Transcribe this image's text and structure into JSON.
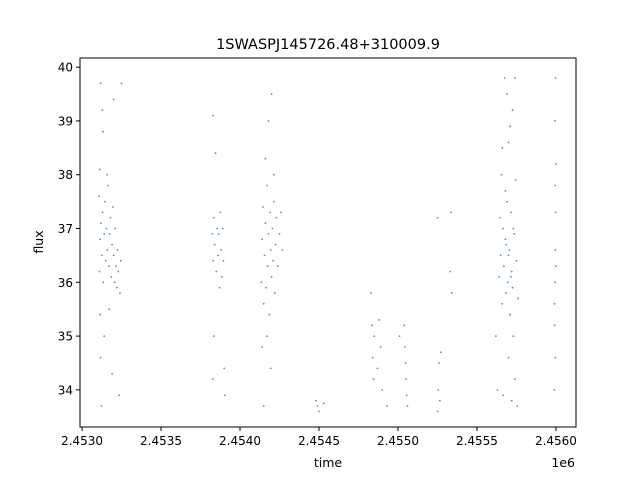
{
  "chart_data": {
    "type": "scatter",
    "title": "1SWASPJ145726.48+310009.9",
    "xlabel": "time",
    "ylabel": "flux",
    "x_offset_label": "1e6",
    "xlim": [
      2452987,
      2456127
    ],
    "ylim": [
      33.31,
      40.17
    ],
    "xticks": [
      2453000,
      2453500,
      2454000,
      2454500,
      2455000,
      2455500,
      2456000
    ],
    "xtick_labels": [
      "2.4530",
      "2.4535",
      "2.4540",
      "2.4545",
      "2.4550",
      "2.4555",
      "2.4560"
    ],
    "yticks": [
      34,
      35,
      36,
      37,
      38,
      39,
      40
    ],
    "ytick_labels": [
      "34",
      "35",
      "36",
      "37",
      "38",
      "39",
      "40"
    ],
    "grid": false,
    "color": "#1f77b4",
    "points": [
      [
        2453110,
        36.2
      ],
      [
        2453115,
        36.8
      ],
      [
        2453120,
        37.1
      ],
      [
        2453125,
        36.5
      ],
      [
        2453130,
        37.3
      ],
      [
        2453135,
        36.0
      ],
      [
        2453140,
        36.9
      ],
      [
        2453145,
        37.5
      ],
      [
        2453150,
        36.4
      ],
      [
        2453155,
        37.0
      ],
      [
        2453160,
        36.6
      ],
      [
        2453165,
        37.8
      ],
      [
        2453170,
        36.3
      ],
      [
        2453175,
        36.9
      ],
      [
        2453180,
        37.2
      ],
      [
        2453185,
        36.1
      ],
      [
        2453190,
        36.7
      ],
      [
        2453195,
        37.4
      ],
      [
        2453200,
        36.5
      ],
      [
        2453205,
        36.0
      ],
      [
        2453210,
        37.0
      ],
      [
        2453215,
        36.3
      ],
      [
        2453220,
        35.9
      ],
      [
        2453225,
        36.6
      ],
      [
        2453230,
        36.2
      ],
      [
        2453240,
        35.8
      ],
      [
        2453245,
        36.4
      ],
      [
        2453112,
        38.1
      ],
      [
        2453118,
        39.7
      ],
      [
        2453128,
        39.2
      ],
      [
        2453133,
        38.8
      ],
      [
        2453158,
        38.0
      ],
      [
        2453200,
        39.4
      ],
      [
        2453250,
        39.7
      ],
      [
        2453115,
        35.4
      ],
      [
        2453140,
        35.0
      ],
      [
        2453117,
        34.6
      ],
      [
        2453123,
        33.7
      ],
      [
        2453190,
        34.3
      ],
      [
        2453235,
        33.9
      ],
      [
        2453108,
        37.6
      ],
      [
        2453172,
        35.5
      ],
      [
        2453825,
        36.9
      ],
      [
        2453830,
        36.4
      ],
      [
        2453835,
        37.2
      ],
      [
        2453840,
        36.7
      ],
      [
        2453845,
        38.4
      ],
      [
        2453850,
        36.2
      ],
      [
        2453855,
        37.0
      ],
      [
        2453860,
        36.5
      ],
      [
        2453865,
        36.9
      ],
      [
        2453870,
        35.9
      ],
      [
        2453875,
        37.3
      ],
      [
        2453880,
        36.6
      ],
      [
        2453885,
        36.1
      ],
      [
        2453890,
        37.0
      ],
      [
        2453895,
        36.4
      ],
      [
        2453828,
        34.2
      ],
      [
        2453834,
        35.0
      ],
      [
        2453900,
        34.4
      ],
      [
        2453905,
        33.9
      ],
      [
        2453830,
        39.1
      ],
      [
        2454135,
        36.0
      ],
      [
        2454140,
        36.8
      ],
      [
        2454145,
        37.4
      ],
      [
        2454150,
        35.6
      ],
      [
        2454155,
        36.5
      ],
      [
        2454160,
        37.1
      ],
      [
        2454165,
        35.9
      ],
      [
        2454170,
        37.8
      ],
      [
        2454175,
        36.3
      ],
      [
        2454180,
        36.9
      ],
      [
        2454185,
        35.4
      ],
      [
        2454190,
        37.3
      ],
      [
        2454195,
        36.6
      ],
      [
        2454200,
        36.1
      ],
      [
        2454205,
        37.0
      ],
      [
        2454210,
        36.4
      ],
      [
        2454215,
        37.5
      ],
      [
        2454220,
        35.8
      ],
      [
        2454225,
        36.7
      ],
      [
        2454230,
        37.2
      ],
      [
        2454240,
        36.3
      ],
      [
        2454250,
        36.9
      ],
      [
        2454260,
        37.3
      ],
      [
        2454268,
        36.6
      ],
      [
        2454160,
        38.3
      ],
      [
        2454180,
        39.0
      ],
      [
        2454200,
        39.5
      ],
      [
        2454140,
        34.8
      ],
      [
        2454150,
        33.7
      ],
      [
        2454195,
        34.4
      ],
      [
        2454170,
        35.0
      ],
      [
        2454215,
        38.0
      ],
      [
        2454480,
        33.8
      ],
      [
        2454490,
        33.7
      ],
      [
        2454500,
        33.6
      ],
      [
        2454530,
        33.75
      ],
      [
        2454830,
        35.8
      ],
      [
        2454835,
        35.2
      ],
      [
        2454840,
        34.6
      ],
      [
        2454845,
        34.2
      ],
      [
        2454850,
        35.0
      ],
      [
        2454870,
        34.4
      ],
      [
        2454880,
        35.3
      ],
      [
        2454890,
        34.8
      ],
      [
        2454900,
        34.0
      ],
      [
        2454930,
        33.7
      ],
      [
        2455010,
        35.0
      ],
      [
        2455040,
        35.2
      ],
      [
        2455045,
        34.8
      ],
      [
        2455050,
        34.2
      ],
      [
        2455055,
        33.9
      ],
      [
        2455060,
        33.7
      ],
      [
        2455048,
        34.5
      ],
      [
        2455250,
        33.6
      ],
      [
        2455255,
        34.0
      ],
      [
        2455260,
        34.5
      ],
      [
        2455265,
        33.8
      ],
      [
        2455270,
        34.7
      ],
      [
        2455250,
        37.2
      ],
      [
        2455330,
        36.2
      ],
      [
        2455335,
        37.3
      ],
      [
        2455340,
        35.8
      ],
      [
        2455620,
        35.0
      ],
      [
        2455630,
        34.0
      ],
      [
        2455640,
        36.1
      ],
      [
        2455645,
        37.2
      ],
      [
        2455650,
        36.5
      ],
      [
        2455655,
        38.0
      ],
      [
        2455660,
        35.6
      ],
      [
        2455665,
        37.0
      ],
      [
        2455670,
        36.3
      ],
      [
        2455675,
        39.8
      ],
      [
        2455680,
        36.8
      ],
      [
        2455685,
        35.8
      ],
      [
        2455690,
        37.5
      ],
      [
        2455695,
        36.0
      ],
      [
        2455700,
        38.6
      ],
      [
        2455705,
        36.6
      ],
      [
        2455710,
        35.4
      ],
      [
        2455715,
        37.3
      ],
      [
        2455720,
        36.2
      ],
      [
        2455725,
        39.2
      ],
      [
        2455730,
        35.0
      ],
      [
        2455735,
        36.9
      ],
      [
        2455740,
        34.2
      ],
      [
        2455745,
        37.9
      ],
      [
        2455750,
        36.4
      ],
      [
        2455755,
        33.7
      ],
      [
        2455760,
        35.7
      ],
      [
        2455665,
        33.9
      ],
      [
        2455700,
        34.6
      ],
      [
        2455720,
        33.8
      ],
      [
        2455690,
        39.5
      ],
      [
        2455740,
        39.8
      ],
      [
        2455660,
        38.5
      ],
      [
        2455710,
        38.9
      ],
      [
        2455680,
        37.7
      ],
      [
        2455730,
        37.0
      ],
      [
        2455700,
        36.5
      ],
      [
        2455715,
        36.1
      ],
      [
        2455685,
        36.7
      ],
      [
        2455725,
        35.9
      ],
      [
        2455990,
        34.0
      ],
      [
        2455992,
        35.2
      ],
      [
        2455994,
        36.0
      ],
      [
        2455996,
        36.6
      ],
      [
        2455998,
        37.3
      ],
      [
        2456000,
        38.2
      ],
      [
        2455993,
        39.0
      ],
      [
        2455997,
        39.8
      ],
      [
        2455995,
        37.8
      ],
      [
        2455999,
        36.3
      ],
      [
        2455991,
        35.6
      ],
      [
        2455996,
        34.6
      ]
    ]
  }
}
